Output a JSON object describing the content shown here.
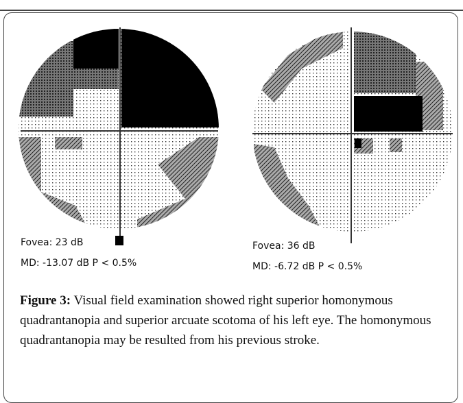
{
  "figure": {
    "panels": [
      {
        "fovea": "Fovea: 23 dB",
        "md": "MD: -13.07 dB P < 0.5%"
      },
      {
        "fovea": "Fovea: 36 dB",
        "md": "MD: -6.72 dB P < 0.5%"
      }
    ],
    "caption": {
      "label": "Figure 3:",
      "text": "Visual field examination showed right superior homonymous quadrantanopia and superior arcuate scotoma of his left eye. The homonymous quadrantanopia may be resulted from his previous stroke."
    }
  }
}
